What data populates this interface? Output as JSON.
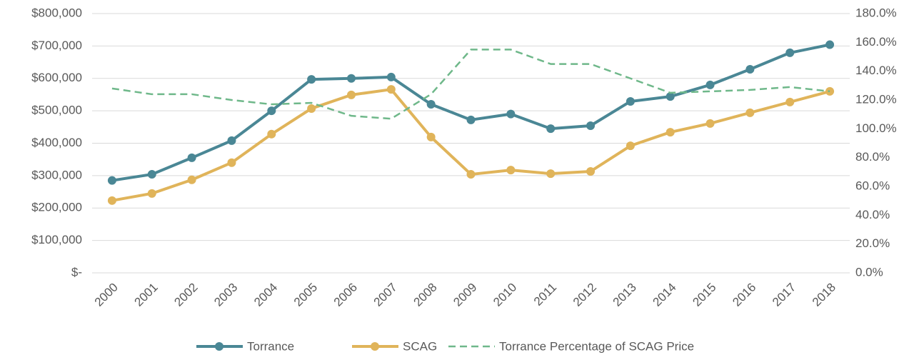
{
  "chart_data": {
    "type": "line",
    "categories": [
      "2000",
      "2001",
      "2002",
      "2003",
      "2004",
      "2005",
      "2006",
      "2007",
      "2008",
      "2009",
      "2010",
      "2011",
      "2012",
      "2013",
      "2014",
      "2015",
      "2016",
      "2017",
      "2018"
    ],
    "series": [
      {
        "name": "Torrance",
        "color": "#4a8795",
        "values": [
          285000,
          304000,
          355000,
          408000,
          500000,
          597000,
          600000,
          604000,
          520000,
          472000,
          490000,
          445000,
          454000,
          529000,
          544000,
          580000,
          628000,
          679000,
          704000
        ]
      },
      {
        "name": "SCAG",
        "color": "#e0b45a",
        "values": [
          223000,
          245000,
          287000,
          340000,
          428000,
          507000,
          549000,
          566000,
          419000,
          304000,
          317000,
          306000,
          313000,
          392000,
          434000,
          461000,
          494000,
          527000,
          560000
        ]
      },
      {
        "name": "Torrance Percentage of SCAG Price",
        "color": "#6fb88a",
        "axis": "y2",
        "dashed": true,
        "values": [
          128,
          124,
          124,
          120,
          117,
          118,
          109,
          107,
          124,
          155,
          155,
          145,
          145,
          135,
          125,
          126,
          127,
          129,
          126
        ]
      }
    ],
    "ylim": [
      0,
      800000
    ],
    "yticks": [
      {
        "value": 0,
        "label": "$-"
      },
      {
        "value": 100000,
        "label": "$100,000"
      },
      {
        "value": 200000,
        "label": "$200,000"
      },
      {
        "value": 300000,
        "label": "$300,000"
      },
      {
        "value": 400000,
        "label": "$400,000"
      },
      {
        "value": 500000,
        "label": "$500,000"
      },
      {
        "value": 600000,
        "label": "$600,000"
      },
      {
        "value": 700000,
        "label": "$700,000"
      },
      {
        "value": 800000,
        "label": "$800,000"
      }
    ],
    "y2lim": [
      0,
      180
    ],
    "y2ticks": [
      {
        "value": 0,
        "label": "0.0%"
      },
      {
        "value": 20,
        "label": "20.0%"
      },
      {
        "value": 40,
        "label": "40.0%"
      },
      {
        "value": 60,
        "label": "60.0%"
      },
      {
        "value": 80,
        "label": "80.0%"
      },
      {
        "value": 100,
        "label": "100.0%"
      },
      {
        "value": 120,
        "label": "120.0%"
      },
      {
        "value": 140,
        "label": "140.0%"
      },
      {
        "value": 160,
        "label": "160.0%"
      },
      {
        "value": 180,
        "label": "180.0%"
      }
    ],
    "grid": true,
    "legend": "bottom"
  }
}
